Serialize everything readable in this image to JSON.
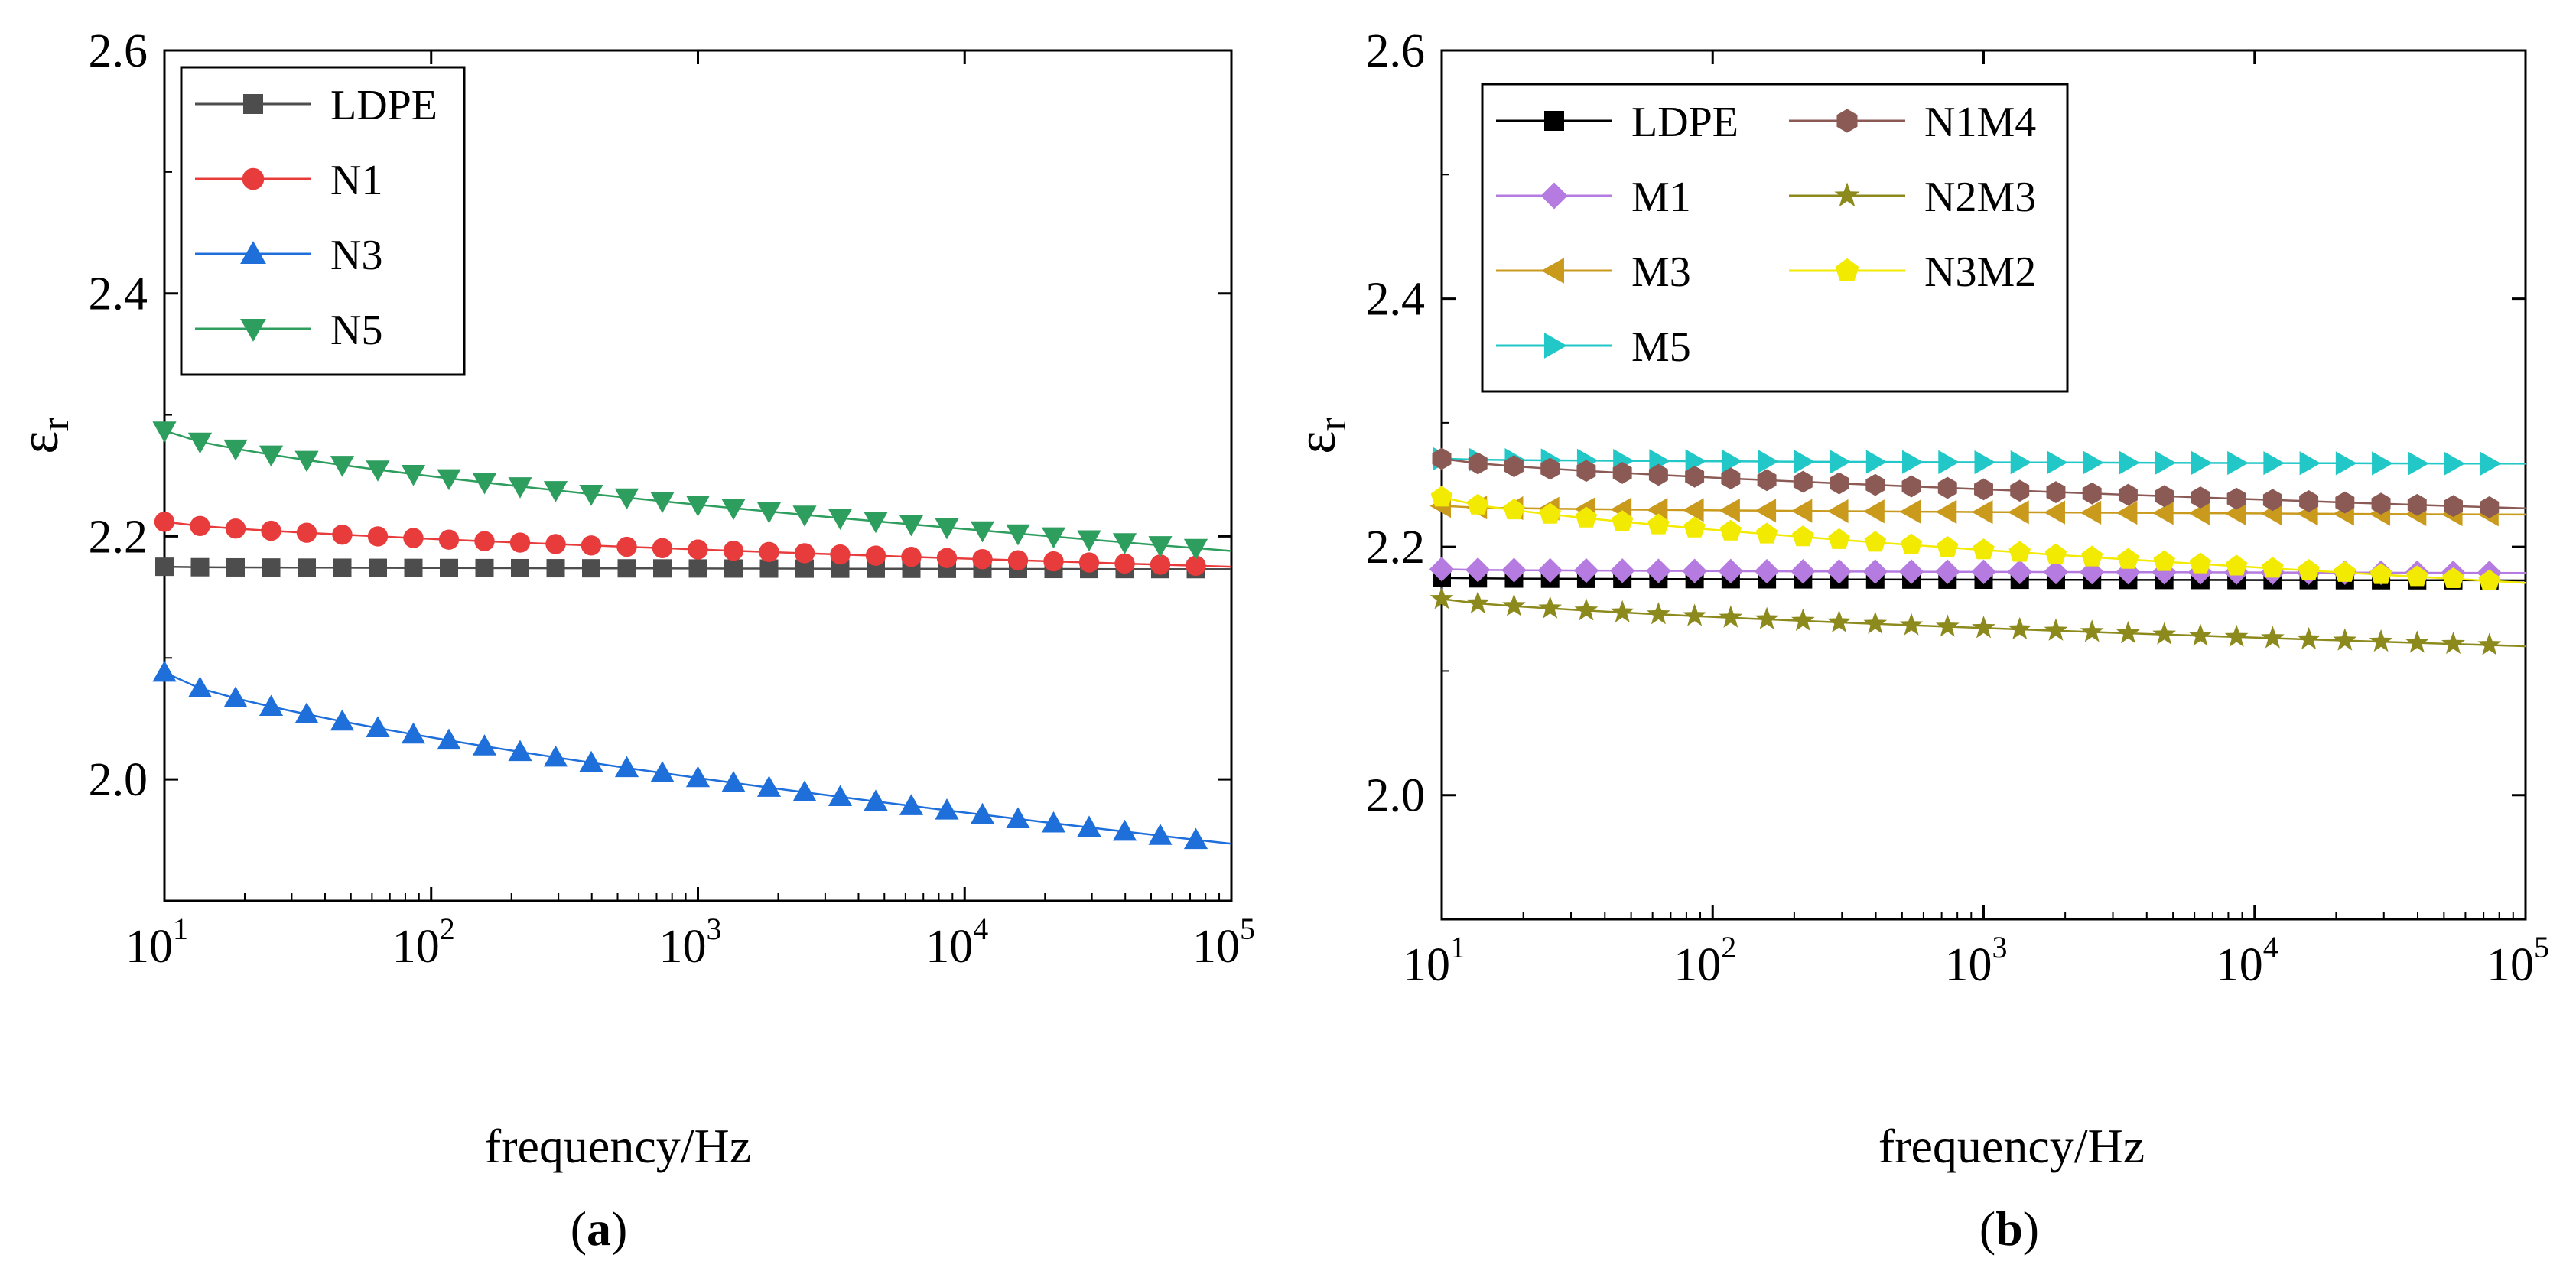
{
  "figure": {
    "panels": [
      {
        "label_open": "(",
        "label": "a",
        "label_close": ")"
      },
      {
        "label_open": "(",
        "label": "b",
        "label_close": ")"
      }
    ]
  },
  "chart_data": [
    {
      "type": "line",
      "panel": "a",
      "title": "",
      "xlabel": "frequency/Hz",
      "ylabel_main": "ε",
      "ylabel_sub": "r",
      "xscale": "log",
      "xlim": [
        10,
        100000
      ],
      "ylim": [
        1.9,
        2.6
      ],
      "x_ticks": [
        {
          "base": "10",
          "exp": "1",
          "value": 10
        },
        {
          "base": "10",
          "exp": "2",
          "value": 100
        },
        {
          "base": "10",
          "exp": "3",
          "value": 1000
        },
        {
          "base": "10",
          "exp": "4",
          "value": 10000
        },
        {
          "base": "10",
          "exp": "5",
          "value": 100000
        }
      ],
      "y_ticks": [
        {
          "label": "2.0",
          "value": 2.0
        },
        {
          "label": "2.2",
          "value": 2.2
        },
        {
          "label": "2.4",
          "value": 2.4
        },
        {
          "label": "2.6",
          "value": 2.6
        }
      ],
      "legend_position": "top-left",
      "series": [
        {
          "name": "LDPE",
          "color": "#4d4d4d",
          "marker": "square",
          "start": 2.175,
          "end": 2.173,
          "shape": 0.5
        },
        {
          "name": "N1",
          "color": "#e83b3b",
          "marker": "circle",
          "start": 2.212,
          "end": 2.175,
          "shape": 0.7
        },
        {
          "name": "N3",
          "color": "#1f6fdb",
          "marker": "triangle-up",
          "start": 2.088,
          "end": 1.947,
          "shape": 0.7
        },
        {
          "name": "N5",
          "color": "#2e9e5e",
          "marker": "triangle-down",
          "start": 2.287,
          "end": 2.188,
          "shape": 0.7
        }
      ]
    },
    {
      "type": "line",
      "panel": "b",
      "title": "",
      "xlabel": "frequency/Hz",
      "ylabel_main": "ε",
      "ylabel_sub": "r",
      "xscale": "log",
      "xlim": [
        10,
        100000
      ],
      "ylim": [
        1.9,
        2.6
      ],
      "x_ticks": [
        {
          "base": "10",
          "exp": "1",
          "value": 10
        },
        {
          "base": "10",
          "exp": "2",
          "value": 100
        },
        {
          "base": "10",
          "exp": "3",
          "value": 1000
        },
        {
          "base": "10",
          "exp": "4",
          "value": 10000
        },
        {
          "base": "10",
          "exp": "5",
          "value": 100000
        }
      ],
      "y_ticks": [
        {
          "label": "2.0",
          "value": 2.0
        },
        {
          "label": "2.2",
          "value": 2.2
        },
        {
          "label": "2.4",
          "value": 2.4
        },
        {
          "label": "2.6",
          "value": 2.6
        }
      ],
      "legend_position": "top-left",
      "series": [
        {
          "name": "LDPE",
          "color": "#000000",
          "marker": "square",
          "start": 2.175,
          "end": 2.173,
          "shape": 0.5
        },
        {
          "name": "M1",
          "color": "#b57be0",
          "marker": "diamond",
          "start": 2.182,
          "end": 2.179,
          "shape": 0.5
        },
        {
          "name": "M3",
          "color": "#c99a1c",
          "marker": "triangle-left",
          "start": 2.233,
          "end": 2.226,
          "shape": 0.5
        },
        {
          "name": "M5",
          "color": "#22c7c7",
          "marker": "triangle-right",
          "start": 2.271,
          "end": 2.267,
          "shape": 0.5
        },
        {
          "name": "N1M4",
          "color": "#8b5a55",
          "marker": "hexagon",
          "start": 2.271,
          "end": 2.231,
          "shape": 0.7
        },
        {
          "name": "N2M3",
          "color": "#8c8a1c",
          "marker": "star",
          "start": 2.158,
          "end": 2.12,
          "shape": 0.7
        },
        {
          "name": "N3M2",
          "color": "#f2ea00",
          "marker": "pentagon",
          "start": 2.24,
          "end": 2.171,
          "shape": 0.7
        }
      ]
    }
  ]
}
